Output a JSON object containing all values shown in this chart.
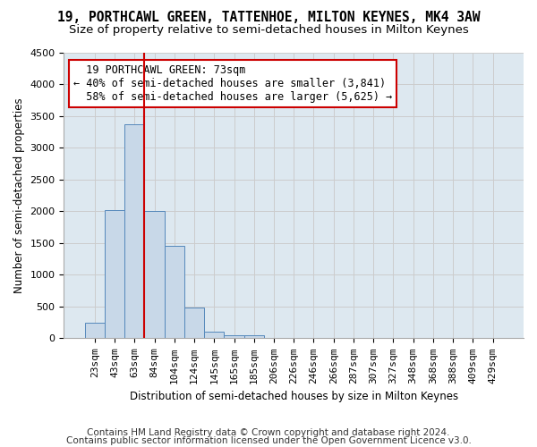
{
  "title1": "19, PORTHCAWL GREEN, TATTENHOE, MILTON KEYNES, MK4 3AW",
  "title2": "Size of property relative to semi-detached houses in Milton Keynes",
  "xlabel": "Distribution of semi-detached houses by size in Milton Keynes",
  "ylabel": "Number of semi-detached properties",
  "footer1": "Contains HM Land Registry data © Crown copyright and database right 2024.",
  "footer2": "Contains public sector information licensed under the Open Government Licence v3.0.",
  "bin_labels": [
    "23sqm",
    "43sqm",
    "63sqm",
    "84sqm",
    "104sqm",
    "124sqm",
    "145sqm",
    "165sqm",
    "185sqm",
    "206sqm",
    "226sqm",
    "246sqm",
    "266sqm",
    "287sqm",
    "307sqm",
    "327sqm",
    "348sqm",
    "368sqm",
    "388sqm",
    "409sqm",
    "429sqm"
  ],
  "bar_values": [
    250,
    2020,
    3370,
    2010,
    1460,
    480,
    100,
    55,
    45,
    0,
    0,
    0,
    0,
    0,
    0,
    0,
    0,
    0,
    0,
    0,
    0
  ],
  "bar_color": "#c8d8e8",
  "bar_edge_color": "#5588bb",
  "ylim": [
    0,
    4500
  ],
  "yticks": [
    0,
    500,
    1000,
    1500,
    2000,
    2500,
    3000,
    3500,
    4000,
    4500
  ],
  "property_size": 73,
  "property_label": "19 PORTHCAWL GREEN: 73sqm",
  "pct_smaller": 40,
  "n_smaller": "3,841",
  "pct_larger": 58,
  "n_larger": "5,625",
  "vline_color": "#cc0000",
  "annotation_box_color": "#cc0000",
  "grid_color": "#cccccc",
  "bg_color": "#dde8f0",
  "title_fontsize": 10.5,
  "subtitle_fontsize": 9.5,
  "axis_label_fontsize": 8.5,
  "tick_fontsize": 8,
  "annotation_fontsize": 8.5,
  "footer_fontsize": 7.5
}
